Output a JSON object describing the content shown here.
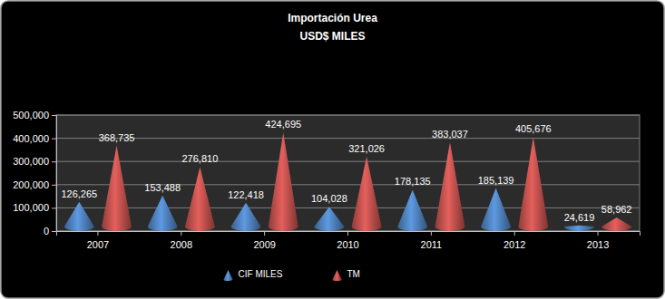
{
  "chart_data": {
    "type": "bar",
    "title": "Importación Urea",
    "subtitle": "USD$ MILES",
    "categories": [
      "2007",
      "2008",
      "2009",
      "2010",
      "2011",
      "2012",
      "2013"
    ],
    "series": [
      {
        "name": "CIF MILES",
        "color": "#4f81bd",
        "values": [
          126265,
          153488,
          122418,
          104028,
          178135,
          185139,
          24619
        ],
        "value_labels": [
          "126,265",
          "153,488",
          "122,418",
          "104,028",
          "178,135",
          "185,139",
          "24,619"
        ]
      },
      {
        "name": "TM",
        "color": "#c0504d",
        "values": [
          368735,
          276810,
          424695,
          321026,
          383037,
          405676,
          58962
        ],
        "value_labels": [
          "368,735",
          "276,810",
          "424,695",
          "321,026",
          "383,037",
          "405,676",
          "58,962"
        ]
      }
    ],
    "ylim": [
      0,
      500000
    ],
    "yticks": [
      0,
      {
        "value": 100000,
        "label": "100,000"
      },
      {
        "value": 200000,
        "label": "200,000"
      },
      {
        "value": 300000,
        "label": "300,000"
      },
      {
        "value": 400000,
        "label": "400,000"
      },
      {
        "value": 500000,
        "label": "500,000"
      }
    ],
    "grid": true,
    "legend": "bottom",
    "data_labels": true,
    "marker": "cone"
  }
}
